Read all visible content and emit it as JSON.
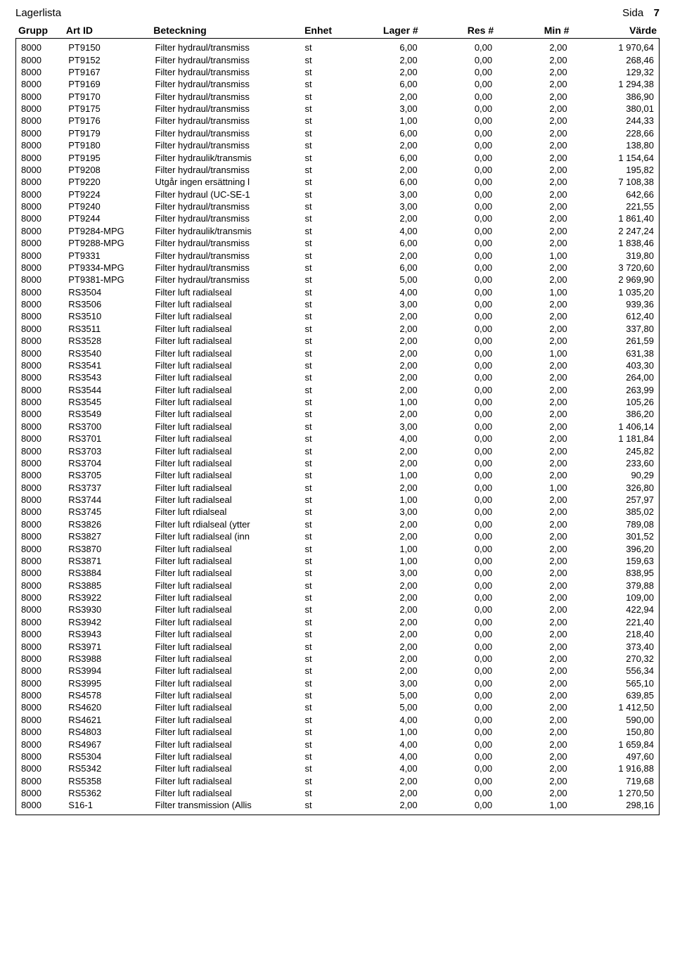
{
  "header": {
    "report_title": "Lagerlista",
    "page_label": "Sida",
    "page_number": "7"
  },
  "table": {
    "columns": {
      "grupp": "Grupp",
      "artid": "Art ID",
      "beteckning": "Beteckning",
      "enhet": "Enhet",
      "lager": "Lager #",
      "res": "Res #",
      "min": "Min #",
      "varde": "Värde"
    },
    "rows": [
      [
        "8000",
        "PT9150",
        "Filter hydraul/transmiss",
        "st",
        "6,00",
        "0,00",
        "2,00",
        "1 970,64"
      ],
      [
        "8000",
        "PT9152",
        "Filter hydraul/transmiss",
        "st",
        "2,00",
        "0,00",
        "2,00",
        "268,46"
      ],
      [
        "8000",
        "PT9167",
        "Filter hydraul/transmiss",
        "st",
        "2,00",
        "0,00",
        "2,00",
        "129,32"
      ],
      [
        "8000",
        "PT9169",
        "Filter hydraul/transmiss",
        "st",
        "6,00",
        "0,00",
        "2,00",
        "1 294,38"
      ],
      [
        "8000",
        "PT9170",
        "Filter hydraul/transmiss",
        "st",
        "2,00",
        "0,00",
        "2,00",
        "386,90"
      ],
      [
        "8000",
        "PT9175",
        "Filter hydraul/transmiss",
        "st",
        "3,00",
        "0,00",
        "2,00",
        "380,01"
      ],
      [
        "8000",
        "PT9176",
        "Filter hydraul/transmiss",
        "st",
        "1,00",
        "0,00",
        "2,00",
        "244,33"
      ],
      [
        "8000",
        "PT9179",
        "Filter hydraul/transmiss",
        "st",
        "6,00",
        "0,00",
        "2,00",
        "228,66"
      ],
      [
        "8000",
        "PT9180",
        "Filter hydraul/transmiss",
        "st",
        "2,00",
        "0,00",
        "2,00",
        "138,80"
      ],
      [
        "8000",
        "PT9195",
        "Filter hydraulik/transmis",
        "st",
        "6,00",
        "0,00",
        "2,00",
        "1 154,64"
      ],
      [
        "8000",
        "PT9208",
        "Filter hydraul/transmiss",
        "st",
        "2,00",
        "0,00",
        "2,00",
        "195,82"
      ],
      [
        "8000",
        "PT9220",
        "Utgår ingen ersättning l",
        "st",
        "6,00",
        "0,00",
        "2,00",
        "7 108,38"
      ],
      [
        "8000",
        "PT9224",
        "Filter hydraul (UC-SE-1",
        "st",
        "3,00",
        "0,00",
        "2,00",
        "642,66"
      ],
      [
        "8000",
        "PT9240",
        "Filter hydraul/transmiss",
        "st",
        "3,00",
        "0,00",
        "2,00",
        "221,55"
      ],
      [
        "8000",
        "PT9244",
        "Filter hydraul/transmiss",
        "st",
        "2,00",
        "0,00",
        "2,00",
        "1 861,40"
      ],
      [
        "8000",
        "PT9284-MPG",
        "Filter hydraulik/transmis",
        "st",
        "4,00",
        "0,00",
        "2,00",
        "2 247,24"
      ],
      [
        "8000",
        "PT9288-MPG",
        "Filter hydraul/transmiss",
        "st",
        "6,00",
        "0,00",
        "2,00",
        "1 838,46"
      ],
      [
        "8000",
        "PT9331",
        "Filter hydraul/transmiss",
        "st",
        "2,00",
        "0,00",
        "1,00",
        "319,80"
      ],
      [
        "8000",
        "PT9334-MPG",
        "Filter hydraul/transmiss",
        "st",
        "6,00",
        "0,00",
        "2,00",
        "3 720,60"
      ],
      [
        "8000",
        "PT9381-MPG",
        "Filter hydraul/transmiss",
        "st",
        "5,00",
        "0,00",
        "2,00",
        "2 969,90"
      ],
      [
        "8000",
        "RS3504",
        "Filter luft radialseal",
        "st",
        "4,00",
        "0,00",
        "1,00",
        "1 035,20"
      ],
      [
        "8000",
        "RS3506",
        "Filter luft radialseal",
        "st",
        "3,00",
        "0,00",
        "2,00",
        "939,36"
      ],
      [
        "8000",
        "RS3510",
        "Filter luft radialseal",
        "st",
        "2,00",
        "0,00",
        "2,00",
        "612,40"
      ],
      [
        "8000",
        "RS3511",
        "Filter luft radialseal",
        "st",
        "2,00",
        "0,00",
        "2,00",
        "337,80"
      ],
      [
        "8000",
        "RS3528",
        "Filter luft radialseal",
        "st",
        "2,00",
        "0,00",
        "2,00",
        "261,59"
      ],
      [
        "8000",
        "RS3540",
        "Filter luft radialseal",
        "st",
        "2,00",
        "0,00",
        "1,00",
        "631,38"
      ],
      [
        "8000",
        "RS3541",
        "Filter luft radialseal",
        "st",
        "2,00",
        "0,00",
        "2,00",
        "403,30"
      ],
      [
        "8000",
        "RS3543",
        "Filter luft radialseal",
        "st",
        "2,00",
        "0,00",
        "2,00",
        "264,00"
      ],
      [
        "8000",
        "RS3544",
        "Filter luft radialseal",
        "st",
        "2,00",
        "0,00",
        "2,00",
        "263,99"
      ],
      [
        "8000",
        "RS3545",
        "Filter luft radialseal",
        "st",
        "1,00",
        "0,00",
        "2,00",
        "105,26"
      ],
      [
        "8000",
        "RS3549",
        "Filter luft radialseal",
        "st",
        "2,00",
        "0,00",
        "2,00",
        "386,20"
      ],
      [
        "8000",
        "RS3700",
        "Filter luft radialseal",
        "st",
        "3,00",
        "0,00",
        "2,00",
        "1 406,14"
      ],
      [
        "8000",
        "RS3701",
        "Filter luft radialseal",
        "st",
        "4,00",
        "0,00",
        "2,00",
        "1 181,84"
      ],
      [
        "8000",
        "RS3703",
        "Filter luft radialseal",
        "st",
        "2,00",
        "0,00",
        "2,00",
        "245,82"
      ],
      [
        "8000",
        "RS3704",
        "Filter luft radialseal",
        "st",
        "2,00",
        "0,00",
        "2,00",
        "233,60"
      ],
      [
        "8000",
        "RS3705",
        "Filter luft radialseal",
        "st",
        "1,00",
        "0,00",
        "2,00",
        "90,29"
      ],
      [
        "8000",
        "RS3737",
        "Filter luft radialseal",
        "st",
        "2,00",
        "0,00",
        "1,00",
        "326,80"
      ],
      [
        "8000",
        "RS3744",
        "Filter luft radialseal",
        "st",
        "1,00",
        "0,00",
        "2,00",
        "257,97"
      ],
      [
        "8000",
        "RS3745",
        "Filter luft rdialseal",
        "st",
        "3,00",
        "0,00",
        "2,00",
        "385,02"
      ],
      [
        "8000",
        "RS3826",
        "Filter luft rdialseal (ytter",
        "st",
        "2,00",
        "0,00",
        "2,00",
        "789,08"
      ],
      [
        "8000",
        "RS3827",
        "Filter luft radialseal (inn",
        "st",
        "2,00",
        "0,00",
        "2,00",
        "301,52"
      ],
      [
        "8000",
        "RS3870",
        "Filter luft radialseal",
        "st",
        "1,00",
        "0,00",
        "2,00",
        "396,20"
      ],
      [
        "8000",
        "RS3871",
        "Filter luft radialseal",
        "st",
        "1,00",
        "0,00",
        "2,00",
        "159,63"
      ],
      [
        "8000",
        "RS3884",
        "Filter luft radialseal",
        "st",
        "3,00",
        "0,00",
        "2,00",
        "838,95"
      ],
      [
        "8000",
        "RS3885",
        "Filter luft radialseal",
        "st",
        "2,00",
        "0,00",
        "2,00",
        "379,88"
      ],
      [
        "8000",
        "RS3922",
        "Filter luft radialseal",
        "st",
        "2,00",
        "0,00",
        "2,00",
        "109,00"
      ],
      [
        "8000",
        "RS3930",
        "Filter luft radialseal",
        "st",
        "2,00",
        "0,00",
        "2,00",
        "422,94"
      ],
      [
        "8000",
        "RS3942",
        "Filter luft radialseal",
        "st",
        "2,00",
        "0,00",
        "2,00",
        "221,40"
      ],
      [
        "8000",
        "RS3943",
        "Filter luft radialseal",
        "st",
        "2,00",
        "0,00",
        "2,00",
        "218,40"
      ],
      [
        "8000",
        "RS3971",
        "Filter luft radialseal",
        "st",
        "2,00",
        "0,00",
        "2,00",
        "373,40"
      ],
      [
        "8000",
        "RS3988",
        "Filter luft radialseal",
        "st",
        "2,00",
        "0,00",
        "2,00",
        "270,32"
      ],
      [
        "8000",
        "RS3994",
        "Filter luft radialseal",
        "st",
        "2,00",
        "0,00",
        "2,00",
        "556,34"
      ],
      [
        "8000",
        "RS3995",
        "Filter luft radialseal",
        "st",
        "3,00",
        "0,00",
        "2,00",
        "565,10"
      ],
      [
        "8000",
        "RS4578",
        "Filter luft radialseal",
        "st",
        "5,00",
        "0,00",
        "2,00",
        "639,85"
      ],
      [
        "8000",
        "RS4620",
        "Filter luft radialseal",
        "st",
        "5,00",
        "0,00",
        "2,00",
        "1 412,50"
      ],
      [
        "8000",
        "RS4621",
        "Filter luft radialseal",
        "st",
        "4,00",
        "0,00",
        "2,00",
        "590,00"
      ],
      [
        "8000",
        "RS4803",
        "Filter luft radialseal",
        "st",
        "1,00",
        "0,00",
        "2,00",
        "150,80"
      ],
      [
        "8000",
        "RS4967",
        "Filter luft radialseal",
        "st",
        "4,00",
        "0,00",
        "2,00",
        "1 659,84"
      ],
      [
        "8000",
        "RS5304",
        "Filter luft radialseal",
        "st",
        "4,00",
        "0,00",
        "2,00",
        "497,60"
      ],
      [
        "8000",
        "RS5342",
        "Filter luft radialseal",
        "st",
        "4,00",
        "0,00",
        "2,00",
        "1 916,88"
      ],
      [
        "8000",
        "RS5358",
        "Filter luft radialseal",
        "st",
        "2,00",
        "0,00",
        "2,00",
        "719,68"
      ],
      [
        "8000",
        "RS5362",
        "Filter luft radialseal",
        "st",
        "2,00",
        "0,00",
        "2,00",
        "1 270,50"
      ],
      [
        "8000",
        "S16-1",
        "Filter transmission (Allis",
        "st",
        "2,00",
        "0,00",
        "1,00",
        "298,16"
      ]
    ]
  }
}
